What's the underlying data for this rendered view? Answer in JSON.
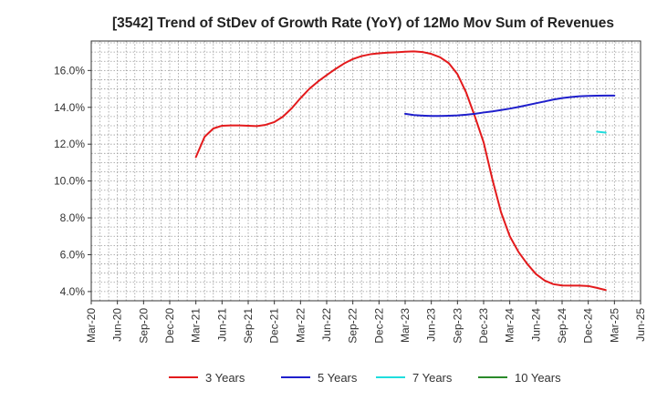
{
  "chart_data": {
    "type": "line",
    "title": "[3542]  Trend of StDev of Growth Rate (YoY) of 12Mo Mov Sum of Revenues",
    "xlabel": "",
    "ylabel": "",
    "x_tick_labels": [
      "Mar-20",
      "Jun-20",
      "Sep-20",
      "Dec-20",
      "Mar-21",
      "Jun-21",
      "Sep-21",
      "Dec-21",
      "Mar-22",
      "Jun-22",
      "Sep-22",
      "Dec-22",
      "Mar-23",
      "Jun-23",
      "Sep-23",
      "Dec-23",
      "Mar-24",
      "Jun-24",
      "Sep-24",
      "Dec-24",
      "Mar-25",
      "Jun-25"
    ],
    "y_ticks": [
      4.0,
      6.0,
      8.0,
      10.0,
      12.0,
      14.0,
      16.0
    ],
    "y_tick_labels": [
      "4.0%",
      "6.0%",
      "8.0%",
      "10.0%",
      "12.0%",
      "14.0%",
      "16.0%"
    ],
    "ylim": [
      3.5,
      17.6
    ],
    "xlim": [
      0,
      63
    ],
    "grid": true,
    "legend_position": "bottom",
    "series": [
      {
        "name": "3 Years",
        "color": "#e31a1c",
        "x": [
          12,
          13,
          14,
          15,
          16,
          17,
          18,
          19,
          20,
          21,
          22,
          23,
          24,
          25,
          26,
          27,
          28,
          29,
          30,
          31,
          32,
          33,
          34,
          35,
          36,
          37,
          38,
          39,
          40,
          41,
          42,
          43,
          44,
          45,
          46,
          47,
          48,
          49,
          50,
          51,
          52,
          53,
          54,
          55,
          56,
          57,
          58,
          59,
          60
        ],
        "values": [
          11.3,
          12.4,
          12.85,
          13.0,
          13.02,
          13.02,
          13.0,
          12.98,
          13.05,
          13.2,
          13.5,
          13.95,
          14.5,
          15.0,
          15.4,
          15.75,
          16.08,
          16.38,
          16.62,
          16.78,
          16.88,
          16.93,
          16.97,
          16.99,
          17.02,
          17.04,
          17.0,
          16.9,
          16.72,
          16.4,
          15.8,
          14.8,
          13.5,
          12.1,
          10.1,
          8.3,
          7.0,
          6.15,
          5.5,
          4.95,
          4.6,
          4.4,
          4.33,
          4.32,
          4.32,
          4.3,
          4.2,
          4.08,
          null
        ]
      },
      {
        "name": "5 Years",
        "color": "#1f1fcc",
        "x": [
          36,
          37,
          38,
          39,
          40,
          41,
          42,
          43,
          44,
          45,
          46,
          47,
          48,
          49,
          50,
          51,
          52,
          53,
          54,
          55,
          56,
          57,
          58,
          59,
          60
        ],
        "values": [
          13.65,
          13.58,
          13.55,
          13.53,
          13.53,
          13.54,
          13.56,
          13.6,
          13.65,
          13.72,
          13.78,
          13.85,
          13.93,
          14.02,
          14.12,
          14.22,
          14.32,
          14.42,
          14.5,
          14.56,
          14.6,
          14.62,
          14.63,
          14.64,
          14.64
        ]
      },
      {
        "name": "7 Years",
        "color": "#1fdddd",
        "x": [
          58,
          59
        ],
        "values": [
          12.68,
          12.63
        ]
      },
      {
        "name": "10 Years",
        "color": "#2a8a2a",
        "x": [],
        "values": []
      }
    ]
  }
}
